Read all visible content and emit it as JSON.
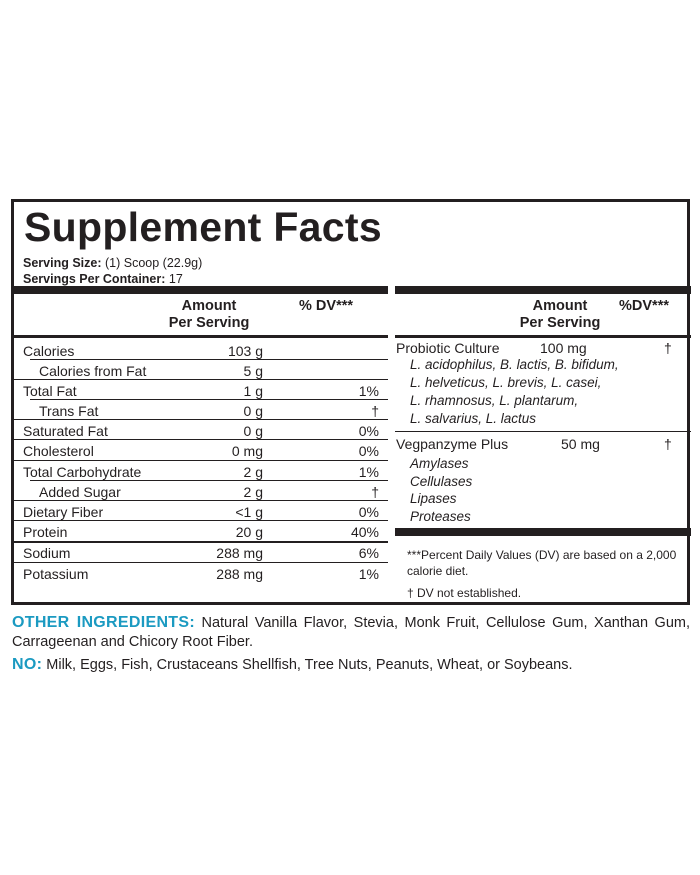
{
  "title": "Supplement Facts",
  "serving_size": {
    "label": "Serving Size:",
    "value": "(1) Scoop (22.9g)"
  },
  "servings_per_container": {
    "label": "Servings Per Container:",
    "value": "17"
  },
  "left_header": {
    "amount": "Amount",
    "per_serving": "Per Serving",
    "dv": "% DV***"
  },
  "left_rows": [
    {
      "label": "Calories",
      "amount": "103 g",
      "dv": ""
    },
    {
      "label": "Calories from Fat",
      "amount": "5 g",
      "dv": ""
    },
    {
      "label": "Total Fat",
      "amount": "1 g",
      "dv": "1%"
    },
    {
      "label": "Trans Fat",
      "amount": "0 g",
      "dv": "†"
    },
    {
      "label": "Saturated Fat",
      "amount": "0 g",
      "dv": "0%"
    },
    {
      "label": "Cholesterol",
      "amount": "0 mg",
      "dv": "0%"
    },
    {
      "label": "Total Carbohydrate",
      "amount": "2 g",
      "dv": "1%"
    },
    {
      "label": "Added Sugar",
      "amount": "2 g",
      "dv": "†"
    },
    {
      "label": "Dietary Fiber",
      "amount": "<1 g",
      "dv": "0%"
    },
    {
      "label": "Protein",
      "amount": "20 g",
      "dv": "40%"
    },
    {
      "label": "Sodium",
      "amount": "288 mg",
      "dv": "6%"
    },
    {
      "label": "Potassium",
      "amount": "288 mg",
      "dv": "1%"
    }
  ],
  "right_header": {
    "amount": "Amount",
    "per_serving": "Per Serving",
    "dv": "%DV***"
  },
  "probiotic": {
    "label": "Probiotic Culture",
    "amount": "100 mg",
    "dv": "†",
    "strains": [
      "L. acidophilus, B. lactis, B. bifidum,",
      "L. helveticus, L. brevis, L. casei,",
      "L. rhamnosus, L. plantarum,",
      "L. salvarius, L. lactus"
    ]
  },
  "enzyme": {
    "label": "Vegpanzyme Plus",
    "amount": "50 mg",
    "dv": "†",
    "items": [
      "Amylases",
      "Cellulases",
      "Lipases",
      "Proteases"
    ]
  },
  "footnotes": {
    "dv_note_line1": "***Percent Daily Values (DV) are based on a 2,000",
    "dv_note_line2": "calorie diet.",
    "dagger_note": "† DV not established."
  },
  "other_ingredients": {
    "label": "OTHER INGREDIENTS:",
    "text": "Natural Vanilla Flavor, Stevia, Monk Fruit, Cellulose Gum, Xanthan Gum, Carrageenan and Chicory Root Fiber."
  },
  "no_list": {
    "label": "NO:",
    "text": "Milk, Eggs, Fish, Crustaceans Shellfish, Tree Nuts, Peanuts, Wheat, or Soybeans."
  },
  "colors": {
    "accent": "#1b9ac1",
    "ink": "#231f20",
    "background": "#ffffff"
  }
}
